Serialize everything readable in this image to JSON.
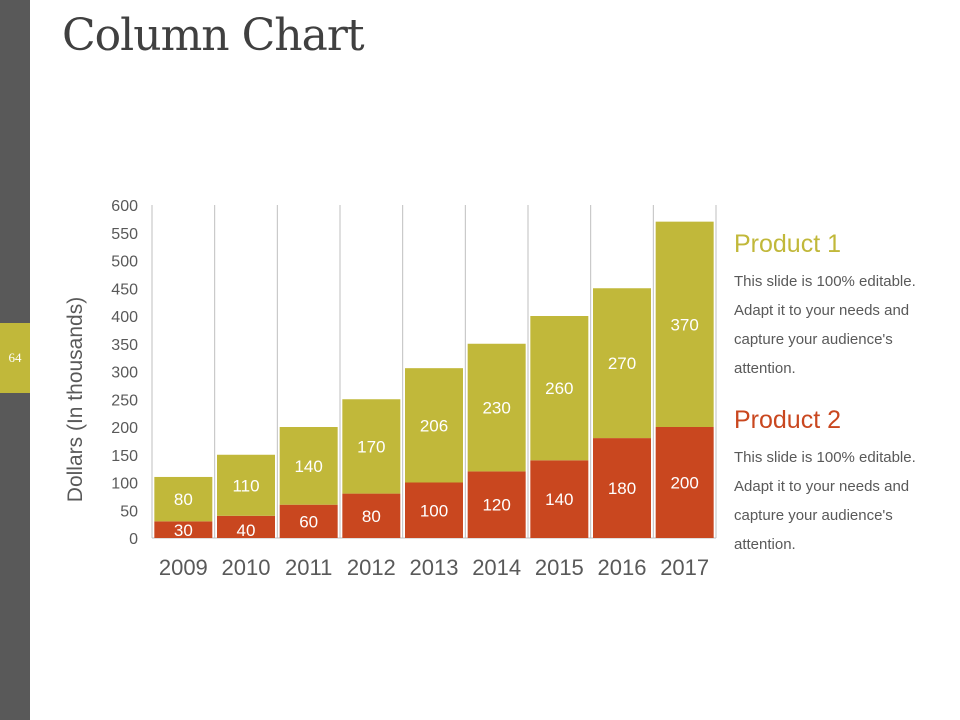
{
  "page": {
    "number": "64",
    "title": "Column Chart"
  },
  "colors": {
    "product1": "#c1b83a",
    "product2": "#c9471f",
    "sidebar": "#595959"
  },
  "chart_data": {
    "type": "bar",
    "stacked": true,
    "categories": [
      "2009",
      "2010",
      "2011",
      "2012",
      "2013",
      "2014",
      "2015",
      "2016",
      "2017"
    ],
    "series": [
      {
        "name": "Product 2",
        "values": [
          30,
          40,
          60,
          80,
          100,
          120,
          140,
          180,
          200
        ]
      },
      {
        "name": "Product 1",
        "values": [
          80,
          110,
          140,
          170,
          206,
          230,
          260,
          270,
          370
        ]
      }
    ],
    "ylabel": "Dollars (In thousands)",
    "xlabel": "",
    "ylim": [
      0,
      600
    ],
    "yticks": [
      0,
      50,
      100,
      150,
      200,
      250,
      300,
      350,
      400,
      450,
      500,
      550,
      600
    ],
    "data_labels": true
  },
  "legend": [
    {
      "title": "Product 1",
      "text": "This slide is 100% editable. Adapt it to your needs and capture your audience's attention."
    },
    {
      "title": "Product 2",
      "text": "This slide is 100% editable. Adapt it to your needs and capture your audience's attention."
    }
  ]
}
